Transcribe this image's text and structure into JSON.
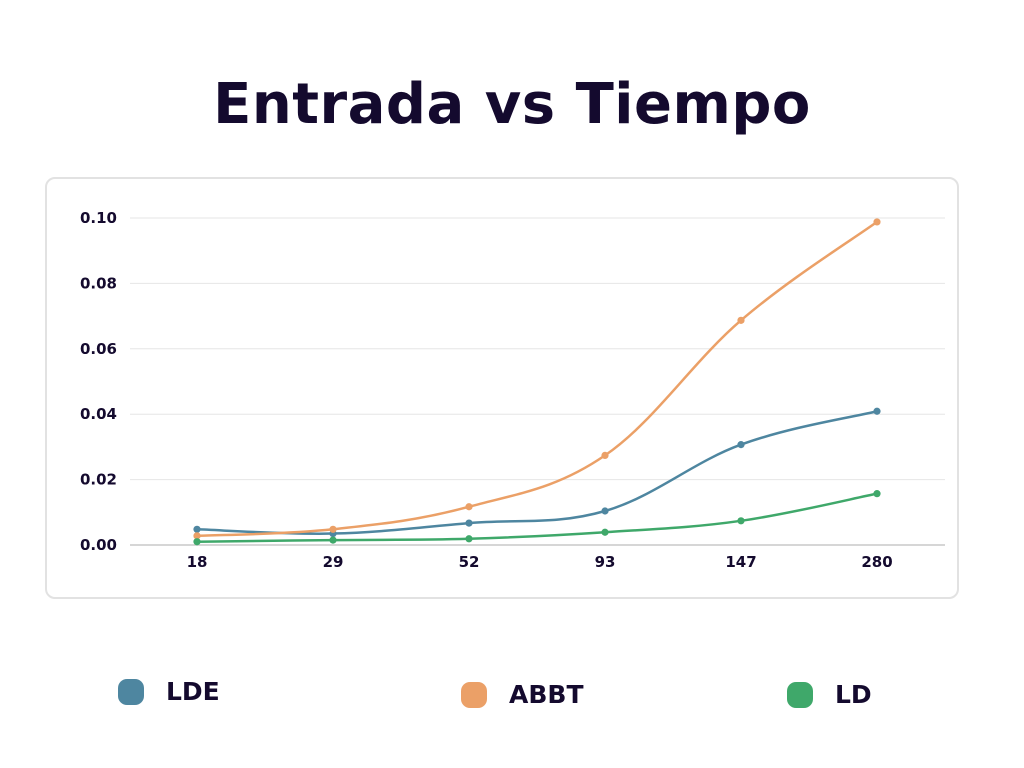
{
  "chart_data": {
    "type": "line",
    "title": "Entrada vs Tiempo",
    "categories": [
      "18",
      "29",
      "52",
      "93",
      "147",
      "280"
    ],
    "ylim": [
      0,
      0.1
    ],
    "yticks": [
      "0.00",
      "0.02",
      "0.04",
      "0.06",
      "0.08",
      "0.10"
    ],
    "grid": true,
    "legend_placement": "bottom",
    "series": [
      {
        "name": "LDE",
        "color": "#4e86a0",
        "values": [
          0.0048,
          0.0035,
          0.0067,
          0.0104,
          0.0307,
          0.0409
        ]
      },
      {
        "name": "ABBT",
        "color": "#eba067",
        "values": [
          0.0028,
          0.0048,
          0.0117,
          0.0274,
          0.0687,
          0.0988
        ]
      },
      {
        "name": "LD",
        "color": "#3fa86a",
        "values": [
          0.001,
          0.0015,
          0.0019,
          0.0039,
          0.0074,
          0.0157
        ]
      }
    ]
  }
}
